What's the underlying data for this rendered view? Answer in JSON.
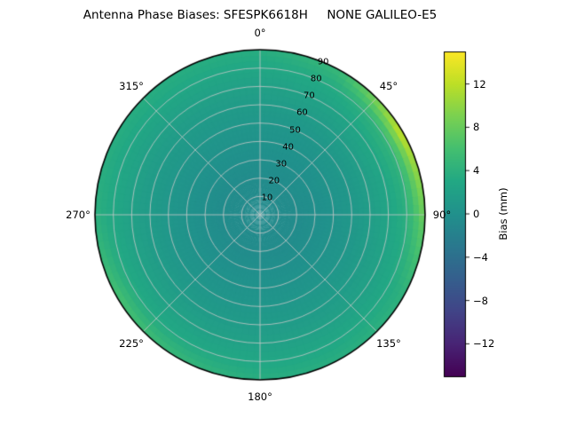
{
  "title": "Antenna Phase Biases: SFESPK6618H     NONE GALILEO-E5",
  "colorbar": {
    "label": "Bias (mm)",
    "vmin": -15,
    "vmax": 15,
    "ticks": [
      {
        "value": 12,
        "label": "12"
      },
      {
        "value": 8,
        "label": "8"
      },
      {
        "value": 4,
        "label": "4"
      },
      {
        "value": 0,
        "label": "0"
      },
      {
        "value": -4,
        "label": "−4"
      },
      {
        "value": -8,
        "label": "−8"
      },
      {
        "value": -12,
        "label": "−12"
      }
    ]
  },
  "polar": {
    "grid_color": "#c9c9c9",
    "edge_color": "#000000",
    "radial_label_angle_deg": 22.5,
    "angular_ticks": [
      {
        "angle": 0,
        "label": "0°"
      },
      {
        "angle": 45,
        "label": "45°"
      },
      {
        "angle": 90,
        "label": "90°"
      },
      {
        "angle": 135,
        "label": "135°"
      },
      {
        "angle": 180,
        "label": "180°"
      },
      {
        "angle": 225,
        "label": "225°"
      },
      {
        "angle": 270,
        "label": "270°"
      },
      {
        "angle": 315,
        "label": "315°"
      }
    ],
    "radial_ticks": [
      {
        "value": 10,
        "label": "10"
      },
      {
        "value": 20,
        "label": "20"
      },
      {
        "value": 30,
        "label": "30"
      },
      {
        "value": 40,
        "label": "40"
      },
      {
        "value": 50,
        "label": "50"
      },
      {
        "value": 60,
        "label": "60"
      },
      {
        "value": 70,
        "label": "70"
      },
      {
        "value": 80,
        "label": "80"
      },
      {
        "value": 90,
        "label": "90"
      }
    ]
  },
  "chart_data": {
    "type": "heatmap",
    "title": "Antenna Phase Biases: SFESPK6618H     NONE GALILEO-E5",
    "colorbar_label": "Bias (mm)",
    "units": "mm",
    "vrange": [
      -15,
      15
    ],
    "azimuth_zero": "top",
    "azimuth_direction": "clockwise",
    "colormap": "viridis",
    "colormap_stops": [
      "#440154",
      "#482475",
      "#414487",
      "#355f8d",
      "#2a788e",
      "#21918c",
      "#22a884",
      "#44bf70",
      "#7ad151",
      "#bddf26",
      "#fde725"
    ],
    "azimuth_deg": [
      0,
      30,
      60,
      90,
      120,
      150,
      180,
      210,
      240,
      270,
      300,
      330
    ],
    "zenith_deg": [
      0,
      10,
      20,
      30,
      40,
      50,
      60,
      70,
      80,
      90
    ],
    "values": [
      [
        -0.8,
        -0.7,
        -0.5,
        -0.2,
        0.2,
        0.7,
        1.3,
        2.0,
        2.8,
        3.6
      ],
      [
        -0.8,
        -0.7,
        -0.5,
        -0.2,
        0.2,
        0.7,
        1.4,
        2.2,
        3.2,
        5.0
      ],
      [
        -0.8,
        -0.7,
        -0.5,
        -0.1,
        0.3,
        0.9,
        1.7,
        2.8,
        4.6,
        13.0
      ],
      [
        -0.8,
        -0.7,
        -0.5,
        -0.2,
        0.3,
        0.8,
        1.6,
        2.5,
        3.8,
        8.5
      ],
      [
        -0.8,
        -0.7,
        -0.5,
        -0.2,
        0.2,
        0.7,
        1.4,
        2.1,
        3.0,
        4.2
      ],
      [
        -0.8,
        -0.7,
        -0.5,
        -0.2,
        0.2,
        0.7,
        1.3,
        2.0,
        2.8,
        3.7
      ],
      [
        -0.8,
        -0.7,
        -0.5,
        -0.2,
        0.2,
        0.7,
        1.3,
        2.0,
        2.8,
        3.6
      ],
      [
        -0.8,
        -0.7,
        -0.5,
        -0.2,
        0.2,
        0.7,
        1.3,
        2.1,
        3.0,
        4.8
      ],
      [
        -0.8,
        -0.7,
        -0.5,
        -0.2,
        0.2,
        0.7,
        1.4,
        2.2,
        3.3,
        6.2
      ],
      [
        -0.8,
        -0.7,
        -0.5,
        -0.2,
        0.2,
        0.7,
        1.3,
        2.0,
        2.9,
        3.9
      ],
      [
        -0.8,
        -0.7,
        -0.5,
        -0.2,
        0.2,
        0.7,
        1.3,
        2.0,
        2.8,
        3.6
      ],
      [
        -0.8,
        -0.7,
        -0.5,
        -0.2,
        0.2,
        0.7,
        1.3,
        2.0,
        2.8,
        3.6
      ]
    ]
  }
}
